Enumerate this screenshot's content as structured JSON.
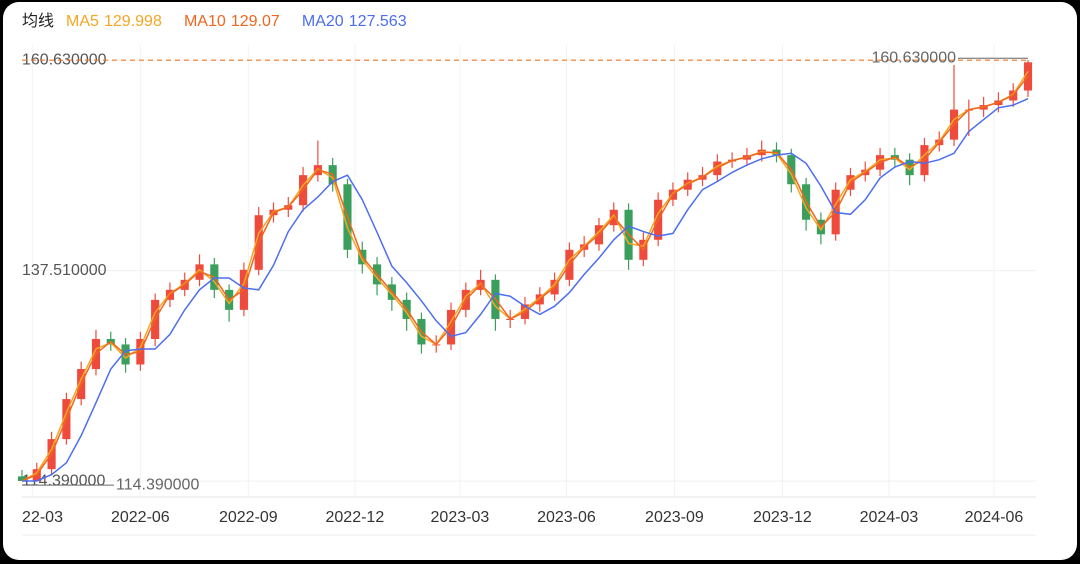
{
  "chart_data": {
    "type": "candlestick",
    "legend_title": "均线",
    "up_color": "#ef4b3c",
    "down_color": "#3a9f5c",
    "open": [
      114.9,
      114.4,
      115.7,
      119.0,
      123.4,
      126.7,
      130.0,
      129.4,
      127.2,
      130.0,
      134.3,
      135.4,
      136.5,
      138.2,
      135.4,
      133.2,
      137.6,
      143.6,
      144.2,
      144.7,
      148.0,
      149.1,
      147.0,
      139.8,
      138.2,
      136.0,
      134.3,
      132.2,
      129.4,
      129.4,
      133.2,
      135.4,
      136.5,
      132.2,
      132.2,
      133.8,
      134.9,
      136.5,
      139.8,
      140.4,
      142.5,
      144.2,
      138.7,
      140.9,
      145.3,
      146.4,
      147.5,
      148.0,
      149.5,
      149.7,
      150.2,
      150.8,
      150.2,
      147.0,
      143.1,
      141.5,
      146.4,
      148.0,
      148.6,
      150.2,
      149.7,
      148.0,
      151.3,
      151.9,
      155.2,
      155.2,
      155.7,
      156.2,
      157.3
    ],
    "high": [
      115.6,
      116.4,
      119.8,
      124.1,
      127.5,
      131.0,
      130.8,
      130.1,
      130.8,
      135.0,
      136.2,
      137.3,
      139.3,
      138.9,
      136.0,
      138.4,
      144.5,
      145.0,
      145.6,
      148.9,
      151.8,
      149.9,
      147.6,
      140.7,
      139.0,
      136.8,
      135.1,
      132.9,
      130.4,
      134.0,
      136.2,
      137.6,
      137.1,
      133.2,
      134.6,
      135.7,
      137.3,
      140.6,
      141.3,
      143.3,
      145.0,
      144.9,
      141.7,
      146.1,
      147.2,
      148.3,
      148.9,
      150.3,
      150.5,
      151.0,
      151.8,
      151.6,
      150.9,
      147.7,
      143.9,
      147.2,
      148.8,
      149.5,
      151.0,
      151.0,
      150.4,
      152.1,
      152.8,
      160.1,
      156.3,
      156.6,
      157.1,
      158.1,
      160.63
    ],
    "low": [
      114.39,
      114.5,
      115.0,
      118.4,
      122.7,
      126.0,
      128.7,
      126.3,
      126.5,
      129.2,
      133.5,
      134.7,
      135.8,
      134.5,
      131.9,
      132.5,
      137.0,
      142.8,
      143.4,
      144.0,
      147.3,
      146.2,
      138.9,
      137.2,
      134.8,
      133.1,
      130.9,
      128.4,
      128.5,
      128.8,
      132.4,
      134.8,
      130.9,
      131.2,
      131.6,
      133.0,
      134.2,
      135.8,
      139.0,
      139.7,
      141.8,
      137.6,
      138.0,
      140.2,
      144.6,
      145.7,
      146.8,
      147.3,
      148.8,
      149.0,
      149.5,
      149.4,
      146.1,
      141.9,
      140.4,
      140.8,
      145.7,
      147.3,
      147.9,
      148.9,
      146.9,
      147.3,
      150.6,
      151.2,
      152.3,
      154.4,
      154.9,
      155.5,
      156.6
    ],
    "close": [
      114.4,
      115.7,
      119.0,
      123.4,
      126.7,
      130.0,
      129.4,
      127.2,
      130.0,
      134.3,
      135.4,
      136.5,
      138.2,
      135.4,
      133.2,
      137.6,
      143.6,
      144.2,
      144.7,
      148.0,
      149.1,
      147.0,
      139.8,
      138.2,
      136.0,
      134.3,
      132.2,
      129.4,
      129.4,
      133.2,
      135.4,
      136.5,
      132.2,
      132.2,
      133.8,
      134.9,
      136.5,
      139.8,
      140.4,
      142.5,
      144.2,
      138.7,
      140.9,
      145.3,
      146.4,
      147.5,
      148.0,
      149.5,
      149.7,
      150.2,
      150.8,
      150.2,
      147.0,
      143.1,
      141.5,
      146.4,
      148.0,
      148.6,
      150.2,
      149.7,
      148.0,
      151.3,
      151.9,
      155.2,
      155.2,
      155.7,
      156.2,
      157.3,
      160.4
    ],
    "series": [
      {
        "name": "MA5",
        "color": "#f5a623",
        "last": 129.998,
        "values": [
          114.4,
          115.3,
          117.9,
          121.9,
          125.6,
          128.9,
          129.6,
          127.9,
          129.1,
          132.9,
          135.0,
          136.1,
          137.6,
          136.3,
          133.9,
          136.1,
          141.6,
          144.0,
          144.5,
          146.9,
          148.7,
          147.7,
          142.2,
          138.7,
          136.7,
          134.9,
          132.9,
          130.3,
          129.4,
          131.9,
          134.7,
          136.1,
          133.6,
          132.2,
          133.3,
          134.5,
          136.0,
          138.7,
          140.2,
          141.8,
          143.6,
          140.5,
          140.2,
          143.8,
          146.0,
          147.1,
          147.8,
          149.0,
          149.6,
          150.0,
          150.6,
          150.4,
          148.1,
          144.4,
          142.0,
          144.8,
          147.5,
          148.4,
          149.7,
          149.9,
          148.6,
          150.2,
          151.7,
          154.1,
          155.2,
          155.5,
          156.0,
          156.9,
          159.4
        ]
      },
      {
        "name": "MA10",
        "color": "#f0661e",
        "last": 129.07,
        "values": [
          114.4,
          115.1,
          117.4,
          121.2,
          125.1,
          128.4,
          129.7,
          128.3,
          128.6,
          132.2,
          134.9,
          136.0,
          137.4,
          136.8,
          134.3,
          135.4,
          140.6,
          143.9,
          144.5,
          146.4,
          148.6,
          148.1,
          143.4,
          139.0,
          137.1,
          135.2,
          133.3,
          130.8,
          129.4,
          131.3,
          134.3,
          136.0,
          134.4,
          132.2,
          133.0,
          134.4,
          135.7,
          138.2,
          140.1,
          141.5,
          143.4,
          141.5,
          139.8,
          143.1,
          145.9,
          147.0,
          147.8,
          148.8,
          149.6,
          150.0,
          150.5,
          150.5,
          148.6,
          145.1,
          142.3,
          144.0,
          147.2,
          148.3,
          149.4,
          150.0,
          148.9,
          149.7,
          151.6,
          153.6,
          155.2,
          155.5,
          156.0,
          156.8,
          158.9
        ]
      },
      {
        "name": "MA20",
        "color": "#4c6ef0",
        "last": 127.563,
        "values": [
          114.4,
          114.4,
          115.1,
          116.4,
          119.4,
          123.0,
          126.7,
          128.7,
          128.9,
          128.9,
          130.5,
          133.2,
          135.4,
          136.7,
          136.7,
          135.6,
          135.4,
          138.1,
          141.8,
          144.2,
          145.6,
          147.3,
          148.0,
          145.3,
          141.7,
          138.0,
          136.2,
          134.2,
          132.0,
          130.3,
          130.7,
          132.7,
          135.0,
          134.7,
          133.6,
          132.7,
          133.6,
          135.1,
          137.1,
          138.9,
          140.9,
          142.4,
          141.8,
          141.3,
          141.6,
          144.2,
          146.4,
          147.3,
          148.3,
          149.1,
          149.8,
          150.2,
          150.4,
          149.3,
          146.8,
          143.9,
          143.7,
          145.3,
          147.7,
          148.9,
          149.5,
          149.3,
          149.7,
          150.4,
          152.8,
          154.1,
          155.4,
          155.7,
          156.4
        ]
      }
    ],
    "xlim": [
      0,
      68
    ],
    "xticks": [
      {
        "value": 0.7,
        "label": "22-03"
      },
      {
        "value": 8.0,
        "label": "2022-06"
      },
      {
        "value": 15.3,
        "label": "2022-09"
      },
      {
        "value": 22.5,
        "label": "2022-12"
      },
      {
        "value": 29.6,
        "label": "2023-03"
      },
      {
        "value": 36.8,
        "label": "2023-06"
      },
      {
        "value": 44.1,
        "label": "2023-09"
      },
      {
        "value": 51.4,
        "label": "2023-12"
      },
      {
        "value": 58.6,
        "label": "2024-03"
      },
      {
        "value": 65.7,
        "label": "2024-06"
      }
    ],
    "ylim": [
      112.64,
      162.3
    ],
    "yticks": [
      {
        "value": 114.39,
        "label": "114.390000"
      },
      {
        "value": 137.51,
        "label": "137.510000"
      },
      {
        "value": 160.63,
        "label": "160.630000"
      }
    ],
    "grid": true,
    "max_marker": {
      "value": 160.63,
      "label": "160.630000"
    },
    "min_marker": {
      "value": 114.39,
      "label": "114.390000"
    }
  }
}
